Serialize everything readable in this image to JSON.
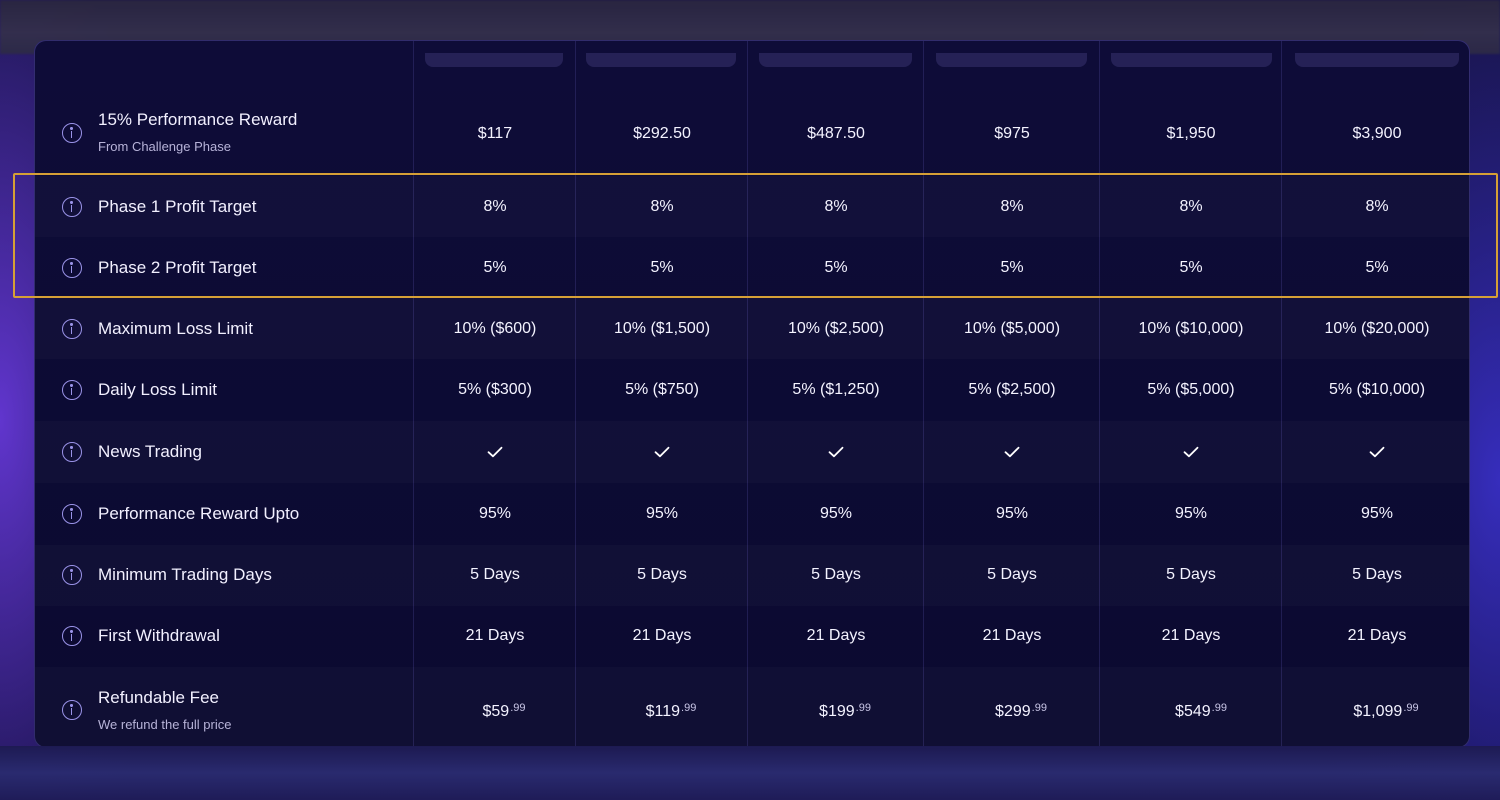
{
  "rows": [
    {
      "label": "15% Performance Reward",
      "sublabel": "From Challenge Phase",
      "values": [
        "$117",
        "$292.50",
        "$487.50",
        "$975",
        "$1,950",
        "$3,900"
      ]
    },
    {
      "label": "Phase 1 Profit Target",
      "values": [
        "8%",
        "8%",
        "8%",
        "8%",
        "8%",
        "8%"
      ]
    },
    {
      "label": "Phase 2 Profit Target",
      "values": [
        "5%",
        "5%",
        "5%",
        "5%",
        "5%",
        "5%"
      ]
    },
    {
      "label": "Maximum Loss Limit",
      "values": [
        "10% ($600)",
        "10% ($1,500)",
        "10% ($2,500)",
        "10% ($5,000)",
        "10% ($10,000)",
        "10% ($20,000)"
      ]
    },
    {
      "label": "Daily Loss Limit",
      "values": [
        "5% ($300)",
        "5% ($750)",
        "5% ($1,250)",
        "5% ($2,500)",
        "5% ($5,000)",
        "5% ($10,000)"
      ]
    },
    {
      "label": "News Trading",
      "check_icon": "check-icon"
    },
    {
      "label": "Performance Reward Upto",
      "values": [
        "95%",
        "95%",
        "95%",
        "95%",
        "95%",
        "95%"
      ]
    },
    {
      "label": "Minimum Trading Days",
      "values": [
        "5 Days",
        "5 Days",
        "5 Days",
        "5 Days",
        "5 Days",
        "5 Days"
      ]
    },
    {
      "label": "First Withdrawal",
      "values": [
        "21 Days",
        "21 Days",
        "21 Days",
        "21 Days",
        "21 Days",
        "21 Days"
      ]
    },
    {
      "label": "Refundable Fee",
      "sublabel": "We refund the full price",
      "prices": [
        {
          "main": "$59",
          "cents": ".99"
        },
        {
          "main": "$119",
          "cents": ".99"
        },
        {
          "main": "$199",
          "cents": ".99"
        },
        {
          "main": "$299",
          "cents": ".99"
        },
        {
          "main": "$549",
          "cents": ".99"
        },
        {
          "main": "$1,099",
          "cents": ".99"
        }
      ]
    }
  ],
  "icons": {
    "info": "info-icon",
    "check": "check-icon"
  },
  "colors": {
    "highlight_border": "#d6a036",
    "info_icon": "#9a93e8",
    "card_bg": "#0e0c38"
  }
}
